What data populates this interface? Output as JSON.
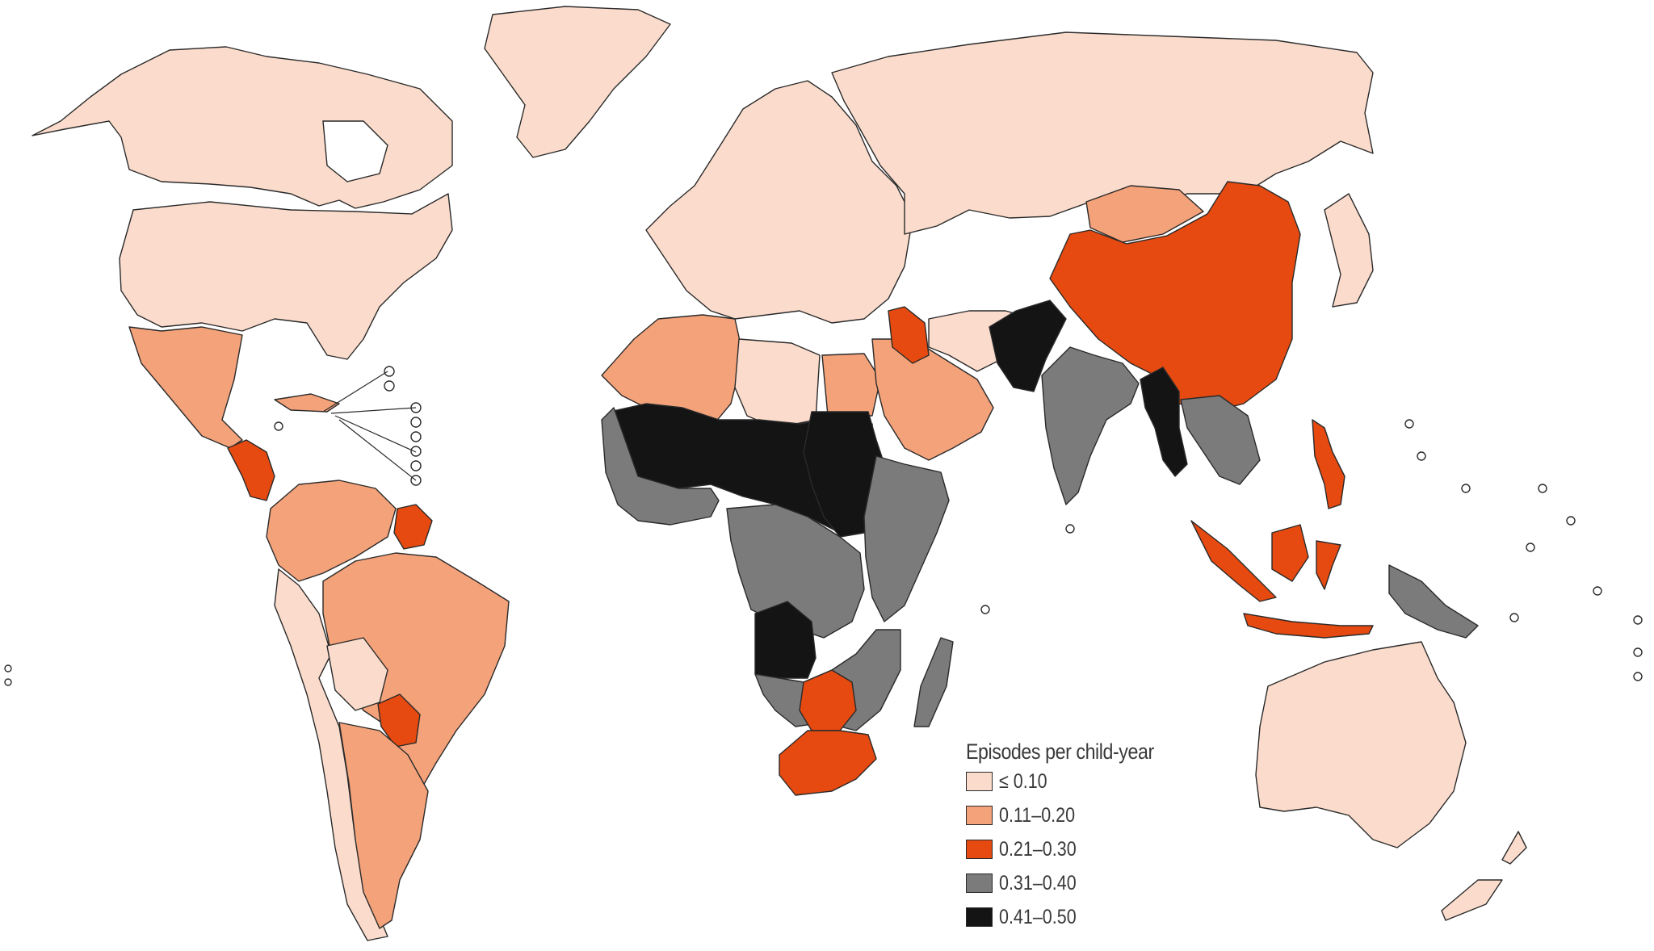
{
  "legend": {
    "title": "Episodes per child-year",
    "items": [
      {
        "label": "≤ 0.10",
        "color": "#fbdccc"
      },
      {
        "label": "0.11–0.20",
        "color": "#f4a27a"
      },
      {
        "label": "0.21–0.30",
        "color": "#e64a10"
      },
      {
        "label": "0.31–0.40",
        "color": "#7b7b7b"
      },
      {
        "label": "0.41–0.50",
        "color": "#141414"
      }
    ]
  },
  "regions": [
    {
      "name": "Canada and Alaska",
      "class": 0
    },
    {
      "name": "Greenland",
      "class": 0
    },
    {
      "name": "United States",
      "class": 0
    },
    {
      "name": "Mexico",
      "class": 1
    },
    {
      "name": "Central America",
      "class": 2
    },
    {
      "name": "Caribbean",
      "class": 1
    },
    {
      "name": "Colombia and Venezuela",
      "class": 1
    },
    {
      "name": "Guianas",
      "class": 2
    },
    {
      "name": "Brazil",
      "class": 1
    },
    {
      "name": "Peru and Chile",
      "class": 0
    },
    {
      "name": "Bolivia",
      "class": 0
    },
    {
      "name": "Paraguay",
      "class": 2
    },
    {
      "name": "Argentina",
      "class": 1
    },
    {
      "name": "Europe",
      "class": 0
    },
    {
      "name": "Russia and Central Asia",
      "class": 0
    },
    {
      "name": "North Africa west",
      "class": 1
    },
    {
      "name": "Libya",
      "class": 0
    },
    {
      "name": "Egypt",
      "class": 1
    },
    {
      "name": "Middle East",
      "class": 1
    },
    {
      "name": "Iraq",
      "class": 2
    },
    {
      "name": "Iran and Afghanistan",
      "class": 0
    },
    {
      "name": "Mongolia",
      "class": 1
    },
    {
      "name": "China",
      "class": 2
    },
    {
      "name": "Pakistan",
      "class": 4
    },
    {
      "name": "India",
      "class": 3
    },
    {
      "name": "Myanmar",
      "class": 4
    },
    {
      "name": "Southeast Asia mainland",
      "class": 3
    },
    {
      "name": "Japan",
      "class": 0
    },
    {
      "name": "Sahel",
      "class": 4
    },
    {
      "name": "West Africa",
      "class": 3
    },
    {
      "name": "Sudan",
      "class": 4
    },
    {
      "name": "East Africa",
      "class": 3
    },
    {
      "name": "Central Africa",
      "class": 3
    },
    {
      "name": "Angola",
      "class": 4
    },
    {
      "name": "Southern Africa",
      "class": 3
    },
    {
      "name": "Zambia and Zimbabwe",
      "class": 2
    },
    {
      "name": "South Africa",
      "class": 2
    },
    {
      "name": "Madagascar",
      "class": 3
    },
    {
      "name": "Indonesia",
      "class": 2
    },
    {
      "name": "Philippines",
      "class": 2
    },
    {
      "name": "Papua New Guinea",
      "class": 3
    },
    {
      "name": "Australia",
      "class": 0
    },
    {
      "name": "New Zealand",
      "class": 0
    }
  ]
}
